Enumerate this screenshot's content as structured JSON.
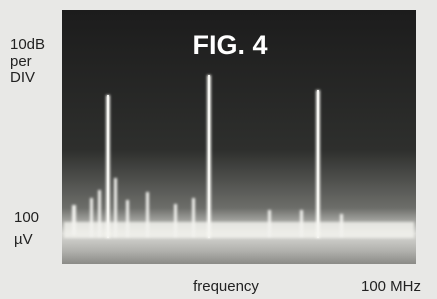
{
  "figure": {
    "title": "FIG. 4",
    "y_scale": [
      "10dB",
      "per",
      "DIV"
    ],
    "reference_level": [
      "100",
      "µV"
    ],
    "x_label": "frequency",
    "x_end_label": "100 MHz"
  }
}
